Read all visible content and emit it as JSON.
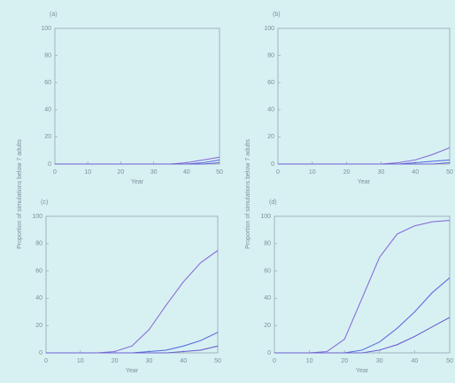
{
  "chart_data": [
    {
      "type": "line",
      "label": "(a)",
      "xlabel": "Year",
      "xlim": [
        0,
        50
      ],
      "xticks": [
        0,
        10,
        20,
        30,
        40,
        50
      ],
      "ylim": [
        0,
        100
      ],
      "yticks": [
        0,
        20,
        40,
        60,
        80,
        100
      ],
      "x": [
        0,
        5,
        10,
        15,
        20,
        25,
        30,
        35,
        40,
        45,
        50
      ],
      "series": [
        {
          "color": "#8a6fd8",
          "values": [
            0,
            0,
            0,
            0,
            0,
            0,
            0,
            0,
            1,
            3,
            5
          ]
        },
        {
          "color": "#5a6fe0",
          "values": [
            0,
            0,
            0,
            0,
            0,
            0,
            0,
            0,
            0,
            1,
            3
          ]
        },
        {
          "color": "#6c5fd0",
          "values": [
            0,
            0,
            0,
            0,
            0,
            0,
            0,
            0,
            0,
            0,
            1
          ]
        }
      ]
    },
    {
      "type": "line",
      "label": "(b)",
      "xlabel": "Year",
      "xlim": [
        0,
        50
      ],
      "xticks": [
        0,
        10,
        20,
        30,
        40,
        50
      ],
      "ylim": [
        0,
        100
      ],
      "yticks": [
        0,
        20,
        40,
        60,
        80,
        100
      ],
      "x": [
        0,
        5,
        10,
        15,
        20,
        25,
        30,
        35,
        40,
        45,
        50
      ],
      "series": [
        {
          "color": "#8a6fd8",
          "values": [
            0,
            0,
            0,
            0,
            0,
            0,
            0,
            1,
            3,
            7,
            12
          ]
        },
        {
          "color": "#5a6fe0",
          "values": [
            0,
            0,
            0,
            0,
            0,
            0,
            0,
            0,
            1,
            2,
            3
          ]
        },
        {
          "color": "#6c5fd0",
          "values": [
            0,
            0,
            0,
            0,
            0,
            0,
            0,
            0,
            0,
            0,
            1
          ]
        }
      ]
    },
    {
      "type": "line",
      "label": "(c)",
      "xlabel": "Year",
      "ylabel": "Proportion of simulations below 7 adults",
      "xlim": [
        0,
        50
      ],
      "xticks": [
        0,
        10,
        20,
        30,
        40,
        50
      ],
      "ylim": [
        0,
        100
      ],
      "yticks": [
        0,
        20,
        40,
        60,
        80,
        100
      ],
      "x": [
        0,
        5,
        10,
        15,
        20,
        25,
        30,
        35,
        40,
        45,
        50
      ],
      "series": [
        {
          "color": "#8a6fd8",
          "values": [
            0,
            0,
            0,
            0,
            1,
            5,
            17,
            35,
            52,
            66,
            75
          ]
        },
        {
          "color": "#5a6fe0",
          "values": [
            0,
            0,
            0,
            0,
            0,
            0,
            1,
            2,
            5,
            9,
            15
          ]
        },
        {
          "color": "#6c5fd0",
          "values": [
            0,
            0,
            0,
            0,
            0,
            0,
            0,
            0,
            1,
            2,
            5
          ]
        }
      ]
    },
    {
      "type": "line",
      "label": "(d)",
      "xlabel": "Year",
      "ylabel": "Proportion of simulations below 7 adults",
      "xlim": [
        0,
        50
      ],
      "xticks": [
        0,
        10,
        20,
        30,
        40,
        50
      ],
      "ylim": [
        0,
        100
      ],
      "yticks": [
        0,
        20,
        40,
        60,
        80,
        100
      ],
      "x": [
        0,
        5,
        10,
        15,
        20,
        25,
        30,
        35,
        40,
        45,
        50
      ],
      "series": [
        {
          "color": "#8a6fd8",
          "values": [
            0,
            0,
            0,
            1,
            10,
            40,
            70,
            87,
            93,
            96,
            97
          ]
        },
        {
          "color": "#5a6fe0",
          "values": [
            0,
            0,
            0,
            0,
            0,
            2,
            8,
            18,
            30,
            44,
            55
          ]
        },
        {
          "color": "#6c5fd0",
          "values": [
            0,
            0,
            0,
            0,
            0,
            0,
            2,
            6,
            12,
            19,
            26
          ]
        }
      ]
    }
  ]
}
